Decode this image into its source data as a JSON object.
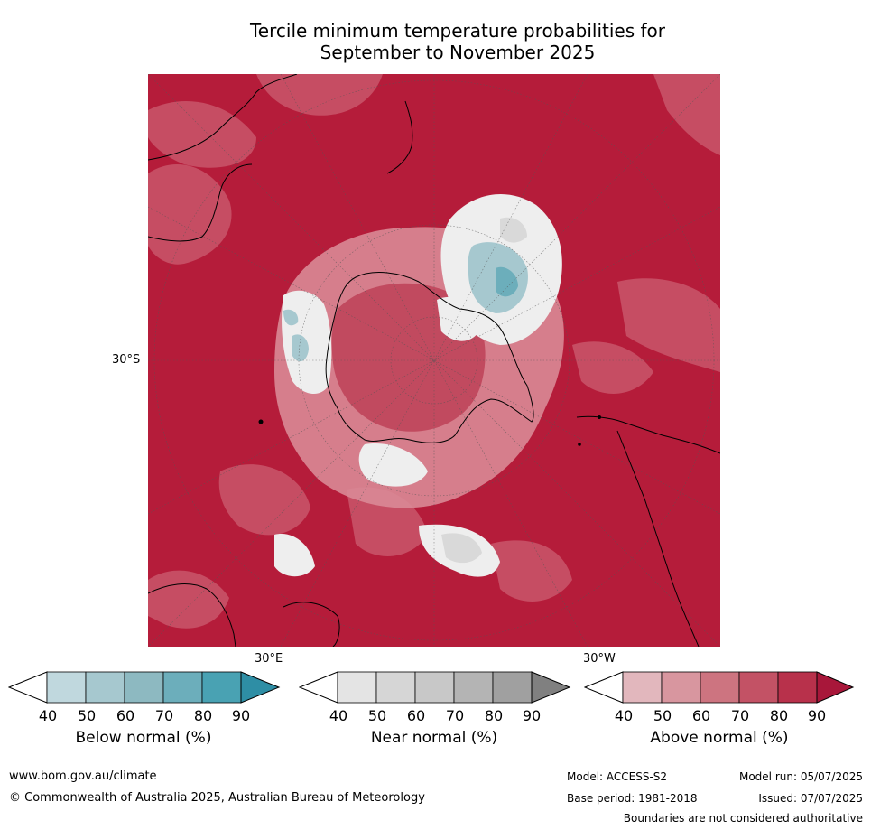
{
  "title_line1": "Tercile minimum temperature probabilities for",
  "title_line2": "September to November 2025",
  "map": {
    "projection": "south-polar-stereographic",
    "lat_label": "30°S",
    "lon_label_east": "30°E",
    "lon_label_west": "30°W",
    "ocean_base_color": "#b51c3a",
    "coastline_color": "#000000"
  },
  "legend": [
    {
      "title": "Below normal (%)",
      "ticks": [
        "40",
        "50",
        "60",
        "70",
        "80",
        "90"
      ],
      "colors": [
        "#ffffff",
        "#c0d8de",
        "#a6c8cf",
        "#8db9c1",
        "#6caebb",
        "#49a2b3",
        "#2e8ea5"
      ]
    },
    {
      "title": "Near normal (%)",
      "ticks": [
        "40",
        "50",
        "60",
        "70",
        "80",
        "90"
      ],
      "colors": [
        "#ffffff",
        "#e4e4e4",
        "#d6d6d6",
        "#c8c8c8",
        "#b4b4b4",
        "#a0a0a0",
        "#808080"
      ]
    },
    {
      "title": "Above normal (%)",
      "ticks": [
        "40",
        "50",
        "60",
        "70",
        "80",
        "90"
      ],
      "colors": [
        "#ffffff",
        "#e2b7bd",
        "#d8969f",
        "#cd7480",
        "#c35265",
        "#b8314b",
        "#a8173a"
      ]
    }
  ],
  "footer": {
    "website": "www.bom.gov.au/climate",
    "copyright": "© Commonwealth of Australia 2025, Australian Bureau of Meteorology",
    "model": "Model: ACCESS-S2",
    "base_period": "Base period: 1981-2018",
    "model_run": "Model run: 05/07/2025",
    "issued": "Issued: 07/07/2025",
    "disclaimer": "Boundaries are not considered authoritative"
  }
}
